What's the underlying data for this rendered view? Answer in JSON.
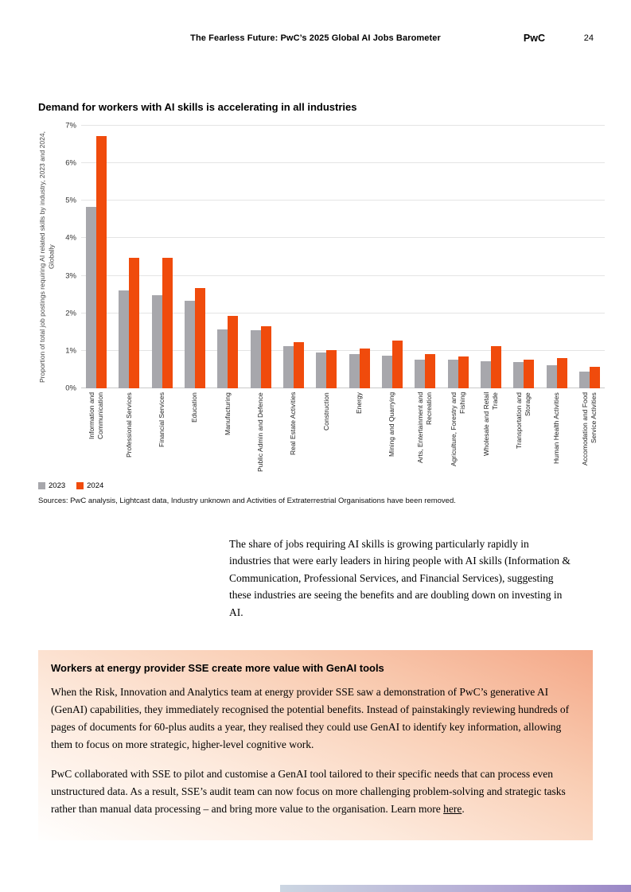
{
  "header": {
    "title": "The Fearless Future: PwC’s 2025 Global AI Jobs Barometer",
    "brand": "PwC",
    "page_number": "24"
  },
  "chart": {
    "title": "Demand for workers with AI skills is accelerating in all industries"
  },
  "chart_data": {
    "type": "bar",
    "title": "Demand for workers with AI skills is accelerating in all industries",
    "xlabel": "",
    "ylabel": "Proportion of total job postings requiring AI related skills by industry, 2023 and 2024, Globally",
    "ylim": [
      0,
      7
    ],
    "yticks": [
      "0%",
      "1%",
      "2%",
      "3%",
      "4%",
      "5%",
      "6%",
      "7%"
    ],
    "grid": "horizontal",
    "legend_position": "bottom-left",
    "categories": [
      "Information and Communication",
      "Professional Services",
      "Financial Services",
      "Education",
      "Manufacturing",
      "Public Admin and Defence",
      "Real Estate Activities",
      "Construction",
      "Energy",
      "Mining and Quarrying",
      "Arts, Entertainment and Recreation",
      "Agriculture, Forestry and Fishing",
      "Wholesale and Retail Trade",
      "Transportation and Storage",
      "Human Health Activities",
      "Accomodation and Food Service Activities"
    ],
    "series": [
      {
        "name": "2023",
        "color": "#a7a7ac",
        "values": [
          4.83,
          2.6,
          2.49,
          2.34,
          1.57,
          1.55,
          1.13,
          0.96,
          0.91,
          0.87,
          0.77,
          0.77,
          0.72,
          0.7,
          0.62,
          0.45
        ]
      },
      {
        "name": "2024",
        "color": "#f04b0c",
        "values": [
          6.72,
          3.47,
          3.47,
          2.68,
          1.94,
          1.66,
          1.23,
          1.02,
          1.06,
          1.28,
          0.91,
          0.85,
          1.13,
          0.77,
          0.81,
          0.57
        ]
      }
    ]
  },
  "source_note": "Sources: PwC analysis, Lightcast data, Industry unknown and Activities of Extraterrestrial Organisations have been removed.",
  "body_paragraph": "The share of jobs requiring AI skills is growing particularly rapidly in industries that were early leaders in hiring people with AI skills (Information & Communication, Professional Services, and Financial Services), suggesting these industries are seeing the benefits and are doubling down on investing in AI.",
  "callout": {
    "title": "Workers at energy provider SSE create more value with GenAI tools",
    "paragraph1": "When the Risk, Innovation and Analytics team at energy provider SSE saw a demonstration of PwC’s generative AI (GenAI) capabilities, they immediately recognised the potential benefits. Instead of painstakingly reviewing hundreds of pages of documents for 60-plus audits a year, they realised they could use GenAI to identify key information, allowing them to focus on more strategic, higher-level cognitive work.",
    "paragraph2_before_link": "PwC collaborated with SSE to pilot and customise a GenAI tool tailored to their specific needs that can process even unstructured data. As a result, SSE’s audit team can now focus on more challenging problem-solving and strategic tasks rather than manual data processing – and bring more value to the organisation. Learn more ",
    "link_text": "here",
    "paragraph2_after_link": "."
  },
  "colors": {
    "accent_orange": "#f04b0c",
    "bar_gray": "#a7a7ac"
  }
}
